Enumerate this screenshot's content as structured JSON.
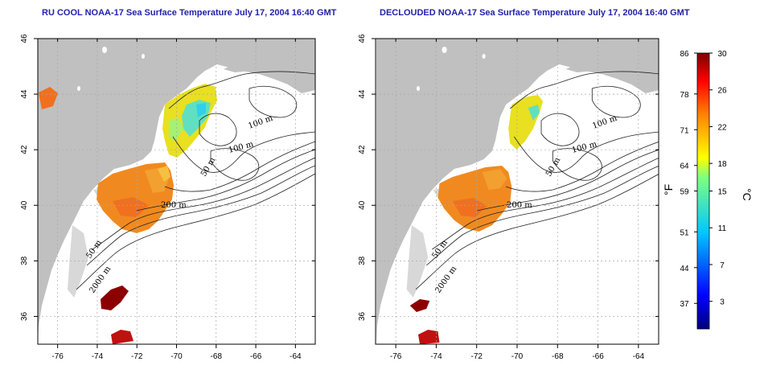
{
  "titles": {
    "left": "RU COOL NOAA-17 Sea Surface Temperature July 17, 2004 16:40 GMT",
    "right": "DECLOUDED NOAA-17 Sea Surface Temperature July 17, 2004 16:40 GMT"
  },
  "axes": {
    "lon_ticks": [
      "-76",
      "-74",
      "-72",
      "-70",
      "-68",
      "-66",
      "-64"
    ],
    "lat_ticks": [
      "46",
      "44",
      "42",
      "40",
      "38",
      "36"
    ],
    "lon_range": [
      -77,
      -63
    ],
    "lat_range": [
      35,
      46
    ]
  },
  "contour_labels": [
    "100 m",
    "100 m",
    "50 m",
    "200 m",
    "50 m",
    "2000 m"
  ],
  "colorbar": {
    "fahrenheit_unit": "°F",
    "celsius_unit": "°C",
    "fahrenheit_ticks": [
      "86",
      "78",
      "71",
      "64",
      "59",
      "51",
      "44",
      "37"
    ],
    "celsius_ticks": [
      "30",
      "26",
      "22",
      "18",
      "15",
      "11",
      "7",
      "3"
    ],
    "range_c": [
      0,
      30
    ],
    "colors": [
      "#00007f",
      "#0000ff",
      "#00ffff",
      "#ffff00",
      "#ff7f00",
      "#ff0000",
      "#7f0000"
    ]
  },
  "colors": {
    "land": "#c0c0c0",
    "ocean": "#ffffff",
    "grid": "#a8a8a8",
    "title": "#2222aa"
  }
}
